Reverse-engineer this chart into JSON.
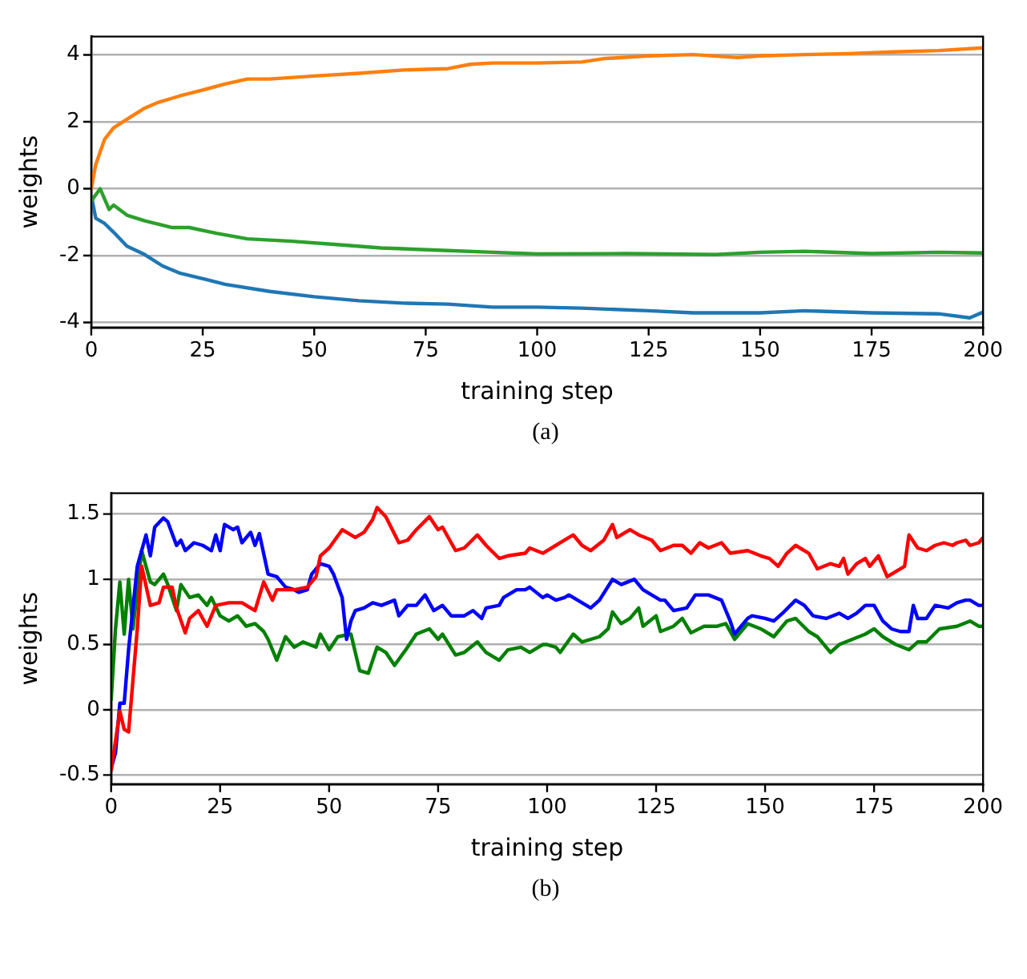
{
  "chart_data": [
    {
      "type": "line",
      "xlabel": "training step",
      "ylabel": "weights",
      "annotations": [
        "(a)"
      ],
      "xlim": [
        0,
        200
      ],
      "ylim": [
        -4.15,
        4.55
      ],
      "xticks": [
        0,
        25,
        50,
        75,
        100,
        125,
        150,
        175,
        200
      ],
      "yticks": [
        -4,
        -2,
        0,
        2,
        4
      ],
      "grid": "y",
      "series": [
        {
          "color": "#ff7f0e",
          "x": [
            0,
            1,
            3,
            5,
            7,
            9,
            12,
            15,
            20,
            25,
            30,
            35,
            40,
            50,
            60,
            70,
            80,
            85,
            90,
            100,
            110,
            115,
            125,
            135,
            145,
            150,
            160,
            170,
            180,
            190,
            200
          ],
          "values": [
            0,
            0.72,
            1.48,
            1.82,
            1.99,
            2.16,
            2.41,
            2.58,
            2.78,
            2.95,
            3.13,
            3.28,
            3.28,
            3.37,
            3.45,
            3.55,
            3.59,
            3.72,
            3.76,
            3.76,
            3.79,
            3.89,
            3.97,
            4.01,
            3.92,
            3.97,
            4.01,
            4.04,
            4.09,
            4.13,
            4.21
          ]
        },
        {
          "color": "#2ca02c",
          "x": [
            0,
            2,
            4,
            5,
            8,
            12,
            18,
            22,
            28,
            35,
            45,
            55,
            65,
            80,
            90,
            100,
            120,
            140,
            150,
            160,
            175,
            190,
            200
          ],
          "values": [
            -0.37,
            0,
            -0.62,
            -0.49,
            -0.79,
            -0.96,
            -1.16,
            -1.16,
            -1.33,
            -1.5,
            -1.57,
            -1.67,
            -1.77,
            -1.85,
            -1.9,
            -1.95,
            -1.94,
            -1.97,
            -1.9,
            -1.87,
            -1.94,
            -1.9,
            -1.92
          ]
        },
        {
          "color": "#1f77b4",
          "x": [
            0,
            1,
            3,
            5,
            8,
            12,
            16,
            20,
            25,
            30,
            40,
            50,
            60,
            70,
            80,
            90,
            100,
            110,
            125,
            135,
            150,
            160,
            175,
            190,
            197,
            200
          ],
          "values": [
            -0.2,
            -0.88,
            -1.04,
            -1.3,
            -1.72,
            -1.97,
            -2.31,
            -2.53,
            -2.69,
            -2.86,
            -3.07,
            -3.23,
            -3.35,
            -3.42,
            -3.45,
            -3.54,
            -3.54,
            -3.57,
            -3.65,
            -3.71,
            -3.71,
            -3.65,
            -3.71,
            -3.74,
            -3.86,
            -3.69
          ]
        }
      ]
    },
    {
      "type": "line",
      "xlabel": "training step",
      "ylabel": "weights",
      "annotations": [
        "(b)"
      ],
      "xlim": [
        0,
        200
      ],
      "ylim": [
        -0.57,
        1.66
      ],
      "xticks": [
        0,
        25,
        50,
        75,
        100,
        125,
        150,
        175,
        200
      ],
      "yticks": [
        -0.5,
        0,
        0.5,
        1,
        1.5
      ],
      "grid": "y",
      "series": [
        {
          "color": "#ff0000",
          "x": [
            0,
            2,
            3,
            4,
            6,
            7,
            9,
            11,
            12,
            14,
            15,
            17,
            18,
            20,
            22,
            24,
            27,
            30,
            33,
            35,
            37,
            38,
            42,
            45,
            47,
            48,
            50,
            53,
            56,
            58,
            60,
            61,
            63,
            66,
            68,
            70,
            73,
            75,
            76,
            79,
            81,
            84,
            86,
            89,
            91,
            95,
            96,
            99,
            100,
            102,
            104,
            106,
            108,
            110,
            113,
            115,
            116,
            119,
            121,
            124,
            126,
            129,
            131,
            133,
            135,
            137,
            140,
            142,
            146,
            149,
            151,
            153,
            155,
            157,
            160,
            162,
            165,
            167,
            168,
            169,
            171,
            173,
            174,
            176,
            178,
            180,
            182,
            183,
            185,
            187,
            189,
            191,
            193,
            194,
            196,
            197,
            199,
            200
          ],
          "values": [
            -0.47,
            -0.01,
            -0.15,
            -0.17,
            0.62,
            1.1,
            0.8,
            0.82,
            0.94,
            0.94,
            0.78,
            0.59,
            0.7,
            0.76,
            0.64,
            0.8,
            0.82,
            0.82,
            0.76,
            0.98,
            0.84,
            0.92,
            0.92,
            0.94,
            1.02,
            1.18,
            1.24,
            1.38,
            1.32,
            1.36,
            1.46,
            1.55,
            1.48,
            1.28,
            1.3,
            1.38,
            1.48,
            1.38,
            1.4,
            1.22,
            1.24,
            1.34,
            1.26,
            1.16,
            1.18,
            1.2,
            1.24,
            1.2,
            1.22,
            1.26,
            1.3,
            1.34,
            1.26,
            1.22,
            1.3,
            1.42,
            1.32,
            1.38,
            1.34,
            1.3,
            1.22,
            1.26,
            1.26,
            1.2,
            1.28,
            1.24,
            1.28,
            1.2,
            1.22,
            1.18,
            1.16,
            1.1,
            1.2,
            1.26,
            1.2,
            1.08,
            1.12,
            1.1,
            1.16,
            1.04,
            1.12,
            1.16,
            1.1,
            1.18,
            1.02,
            1.06,
            1.1,
            1.34,
            1.24,
            1.22,
            1.26,
            1.28,
            1.26,
            1.28,
            1.3,
            1.26,
            1.28,
            1.32
          ]
        },
        {
          "color": "#0000ff",
          "x": [
            0,
            1,
            2,
            3,
            4,
            6,
            8,
            9,
            10,
            12,
            13,
            15,
            16,
            17,
            19,
            21,
            23,
            24,
            25,
            26,
            28,
            29,
            30,
            32,
            33,
            34,
            36,
            38,
            40,
            42,
            43,
            45,
            46,
            48,
            50,
            51,
            53,
            54,
            55,
            56,
            58,
            60,
            62,
            65,
            66,
            68,
            70,
            72,
            74,
            76,
            78,
            81,
            83,
            85,
            86,
            89,
            90,
            93,
            95,
            96,
            99,
            100,
            102,
            104,
            105,
            107,
            110,
            112,
            115,
            117,
            120,
            122,
            126,
            127,
            129,
            132,
            134,
            137,
            140,
            142,
            143,
            146,
            147,
            150,
            152,
            154,
            157,
            159,
            161,
            164,
            167,
            169,
            171,
            173,
            175,
            177,
            179,
            181,
            183,
            184,
            185,
            187,
            189,
            192,
            194,
            196,
            197,
            199,
            200
          ],
          "values": [
            -0.45,
            -0.33,
            0.05,
            0.05,
            0.46,
            1.1,
            1.34,
            1.18,
            1.4,
            1.47,
            1.44,
            1.26,
            1.3,
            1.22,
            1.28,
            1.26,
            1.22,
            1.34,
            1.22,
            1.42,
            1.38,
            1.4,
            1.28,
            1.36,
            1.26,
            1.35,
            1.04,
            1.02,
            0.94,
            0.92,
            0.9,
            0.92,
            1.04,
            1.12,
            1.1,
            1.04,
            0.86,
            0.54,
            0.68,
            0.76,
            0.78,
            0.82,
            0.8,
            0.84,
            0.72,
            0.8,
            0.8,
            0.88,
            0.76,
            0.8,
            0.72,
            0.72,
            0.76,
            0.7,
            0.78,
            0.8,
            0.86,
            0.92,
            0.92,
            0.94,
            0.86,
            0.88,
            0.84,
            0.86,
            0.88,
            0.84,
            0.78,
            0.84,
            1.0,
            0.96,
            1.0,
            0.92,
            0.84,
            0.84,
            0.76,
            0.78,
            0.88,
            0.88,
            0.84,
            0.68,
            0.58,
            0.7,
            0.72,
            0.7,
            0.68,
            0.74,
            0.84,
            0.8,
            0.72,
            0.7,
            0.74,
            0.7,
            0.74,
            0.8,
            0.8,
            0.68,
            0.62,
            0.6,
            0.6,
            0.8,
            0.7,
            0.7,
            0.8,
            0.78,
            0.82,
            0.84,
            0.84,
            0.8,
            0.8
          ]
        },
        {
          "color": "#008000",
          "x": [
            0,
            1,
            2,
            3,
            4,
            5,
            7,
            9,
            10,
            12,
            13,
            15,
            16,
            18,
            20,
            22,
            23,
            25,
            27,
            29,
            31,
            33,
            35,
            36,
            38,
            40,
            42,
            44,
            47,
            48,
            50,
            52,
            55,
            57,
            59,
            61,
            63,
            65,
            68,
            70,
            73,
            75,
            76,
            79,
            81,
            84,
            86,
            89,
            91,
            94,
            96,
            99,
            100,
            102,
            103,
            106,
            108,
            112,
            114,
            115,
            117,
            119,
            121,
            122,
            125,
            126,
            129,
            131,
            133,
            136,
            139,
            141,
            143,
            146,
            149,
            152,
            155,
            157,
            160,
            162,
            165,
            167,
            170,
            173,
            175,
            177,
            180,
            183,
            185,
            187,
            190,
            194,
            197,
            199,
            200
          ],
          "values": [
            0.07,
            0.62,
            0.98,
            0.58,
            1.0,
            0.62,
            1.22,
            0.98,
            0.96,
            1.04,
            0.96,
            0.76,
            0.96,
            0.86,
            0.88,
            0.8,
            0.86,
            0.72,
            0.68,
            0.72,
            0.64,
            0.66,
            0.6,
            0.54,
            0.38,
            0.56,
            0.48,
            0.52,
            0.48,
            0.58,
            0.46,
            0.56,
            0.58,
            0.3,
            0.28,
            0.48,
            0.44,
            0.34,
            0.48,
            0.58,
            0.62,
            0.54,
            0.58,
            0.42,
            0.44,
            0.52,
            0.44,
            0.38,
            0.46,
            0.48,
            0.44,
            0.5,
            0.5,
            0.48,
            0.44,
            0.58,
            0.52,
            0.56,
            0.62,
            0.75,
            0.66,
            0.7,
            0.78,
            0.64,
            0.72,
            0.6,
            0.64,
            0.7,
            0.59,
            0.64,
            0.64,
            0.66,
            0.54,
            0.66,
            0.62,
            0.56,
            0.68,
            0.7,
            0.6,
            0.56,
            0.44,
            0.5,
            0.54,
            0.58,
            0.62,
            0.56,
            0.5,
            0.46,
            0.52,
            0.52,
            0.62,
            0.64,
            0.68,
            0.64,
            0.64
          ]
        }
      ]
    }
  ]
}
